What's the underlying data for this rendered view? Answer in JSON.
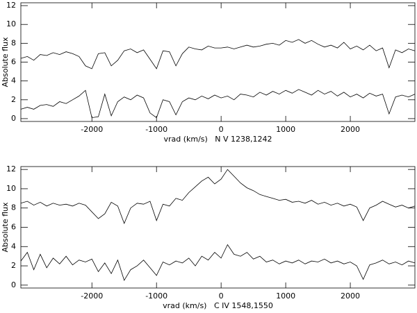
{
  "chart_data": [
    {
      "type": "line",
      "xlabel": "vrad (km/s)   N V 1238,1242",
      "ylabel": "Absolute flux",
      "xlim": [
        -3100,
        3000
      ],
      "ylim": [
        -0.3,
        12.3
      ],
      "xticks": [
        -2000,
        -1000,
        0,
        1000,
        2000
      ],
      "yticks": [
        0,
        2,
        4,
        6,
        8,
        10,
        12
      ],
      "x": [
        -3100,
        -3000,
        -2900,
        -2800,
        -2700,
        -2600,
        -2500,
        -2400,
        -2300,
        -2200,
        -2100,
        -2000,
        -1900,
        -1800,
        -1700,
        -1600,
        -1500,
        -1400,
        -1300,
        -1200,
        -1100,
        -1000,
        -900,
        -800,
        -700,
        -600,
        -500,
        -400,
        -300,
        -200,
        -100,
        0,
        100,
        200,
        300,
        400,
        500,
        600,
        700,
        800,
        900,
        1000,
        1100,
        1200,
        1300,
        1400,
        1500,
        1600,
        1700,
        1800,
        1900,
        2000,
        2100,
        2200,
        2300,
        2400,
        2500,
        2600,
        2700,
        2800,
        2900,
        3000
      ],
      "series": [
        {
          "color": "#000000",
          "values": [
            6.4,
            6.6,
            6.2,
            6.8,
            6.7,
            7.0,
            6.8,
            7.1,
            6.9,
            6.6,
            5.6,
            5.3,
            6.9,
            7.0,
            5.6,
            6.2,
            7.2,
            7.4,
            7.0,
            7.3,
            6.3,
            5.3,
            7.2,
            7.1,
            5.6,
            6.9,
            7.6,
            7.4,
            7.3,
            7.7,
            7.5,
            7.5,
            7.6,
            7.4,
            7.6,
            7.8,
            7.6,
            7.7,
            7.9,
            8.0,
            7.8,
            8.3,
            8.1,
            8.4,
            8.0,
            8.3,
            7.9,
            7.6,
            7.8,
            7.5,
            8.1,
            7.4,
            7.7,
            7.3,
            7.8,
            7.2,
            7.5,
            5.4,
            7.3,
            7.0,
            7.4,
            7.2
          ]
        },
        {
          "color": "#000000",
          "values": [
            1.0,
            1.2,
            1.0,
            1.4,
            1.5,
            1.3,
            1.8,
            1.6,
            2.0,
            2.4,
            3.0,
            0.1,
            0.2,
            2.6,
            0.3,
            1.8,
            2.3,
            2.0,
            2.5,
            2.2,
            0.6,
            0.1,
            2.0,
            1.8,
            0.4,
            1.8,
            2.2,
            2.0,
            2.4,
            2.1,
            2.5,
            2.2,
            2.4,
            2.0,
            2.6,
            2.5,
            2.3,
            2.8,
            2.5,
            2.9,
            2.6,
            3.0,
            2.7,
            3.1,
            2.8,
            2.5,
            3.0,
            2.6,
            2.9,
            2.4,
            2.8,
            2.3,
            2.6,
            2.2,
            2.7,
            2.4,
            2.6,
            0.5,
            2.3,
            2.5,
            2.3,
            2.6
          ]
        }
      ]
    },
    {
      "type": "line",
      "xlabel": "vrad (km/s)   C IV 1548,1550",
      "ylabel": "Absolute flux",
      "xlim": [
        -3100,
        3000
      ],
      "ylim": [
        -0.3,
        12.3
      ],
      "xticks": [
        -2000,
        -1000,
        0,
        1000,
        2000
      ],
      "yticks": [
        0,
        2,
        4,
        6,
        8,
        10,
        12
      ],
      "x": [
        -3100,
        -3000,
        -2900,
        -2800,
        -2700,
        -2600,
        -2500,
        -2400,
        -2300,
        -2200,
        -2100,
        -2000,
        -1900,
        -1800,
        -1700,
        -1600,
        -1500,
        -1400,
        -1300,
        -1200,
        -1100,
        -1000,
        -900,
        -800,
        -700,
        -600,
        -500,
        -400,
        -300,
        -200,
        -100,
        0,
        100,
        200,
        300,
        400,
        500,
        600,
        700,
        800,
        900,
        1000,
        1100,
        1200,
        1300,
        1400,
        1500,
        1600,
        1700,
        1800,
        1900,
        2000,
        2100,
        2200,
        2300,
        2400,
        2500,
        2600,
        2700,
        2800,
        2900,
        3000
      ],
      "series": [
        {
          "color": "#000000",
          "values": [
            8.5,
            8.7,
            8.3,
            8.6,
            8.2,
            8.5,
            8.3,
            8.4,
            8.2,
            8.5,
            8.3,
            7.6,
            6.9,
            7.4,
            8.6,
            8.2,
            6.4,
            8.0,
            8.5,
            8.4,
            8.7,
            6.7,
            8.4,
            8.2,
            9.0,
            8.8,
            9.6,
            10.2,
            10.8,
            11.2,
            10.5,
            11.0,
            12.0,
            11.3,
            10.6,
            10.1,
            9.8,
            9.4,
            9.2,
            9.0,
            8.8,
            8.9,
            8.6,
            8.7,
            8.5,
            8.8,
            8.4,
            8.6,
            8.3,
            8.5,
            8.2,
            8.4,
            8.1,
            6.7,
            8.0,
            8.3,
            8.7,
            8.4,
            8.1,
            8.3,
            8.0,
            8.2
          ]
        },
        {
          "color": "#000000",
          "values": [
            2.5,
            3.4,
            1.6,
            3.2,
            1.8,
            2.8,
            2.2,
            3.0,
            2.1,
            2.6,
            2.4,
            2.7,
            1.4,
            2.3,
            1.2,
            2.6,
            0.5,
            1.6,
            2.0,
            2.6,
            1.8,
            1.0,
            2.4,
            2.1,
            2.5,
            2.3,
            2.8,
            2.0,
            3.0,
            2.6,
            3.4,
            2.8,
            4.2,
            3.2,
            3.0,
            3.4,
            2.7,
            3.0,
            2.4,
            2.6,
            2.2,
            2.5,
            2.3,
            2.6,
            2.2,
            2.5,
            2.4,
            2.7,
            2.3,
            2.5,
            2.2,
            2.4,
            2.0,
            0.6,
            2.1,
            2.3,
            2.6,
            2.2,
            2.4,
            2.1,
            2.5,
            2.3
          ]
        }
      ]
    }
  ]
}
